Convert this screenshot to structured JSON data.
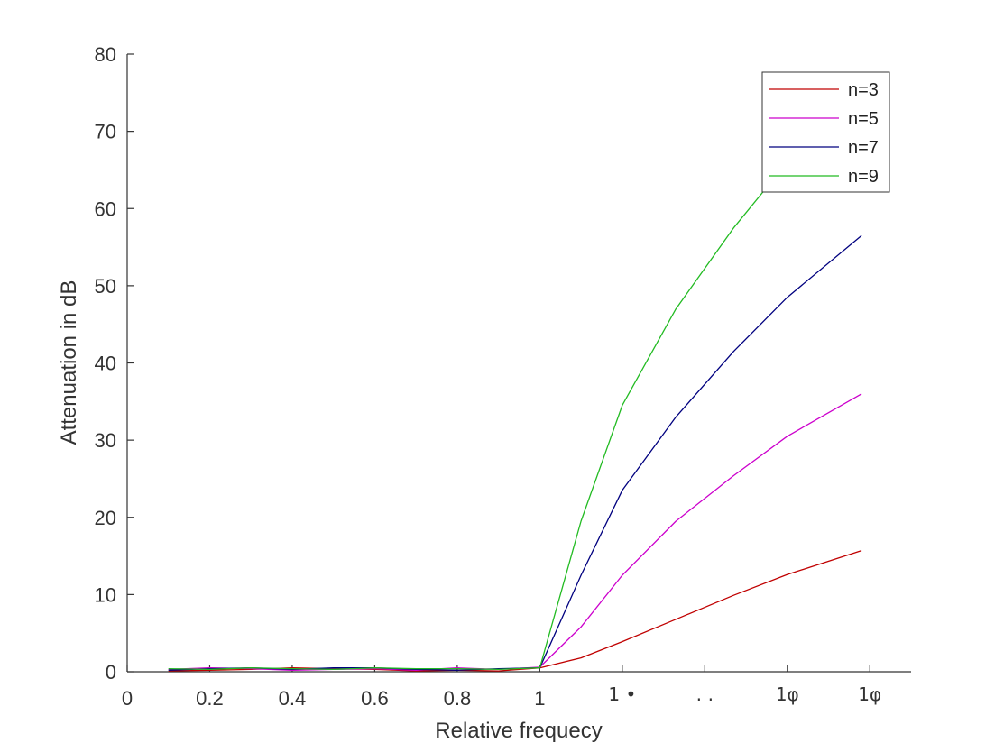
{
  "chart_data": {
    "type": "line",
    "title": "",
    "xlabel": "Relative frequecy",
    "ylabel": "Attenuation in dB",
    "xlim": [
      0,
      1.9
    ],
    "ylim": [
      0,
      80
    ],
    "x_ticks": [
      0,
      0.2,
      0.4,
      0.6,
      0.8,
      1,
      1.2,
      1.4,
      1.6,
      1.8
    ],
    "x_tick_labels": [
      "0",
      "0.2",
      "0.4",
      "0.6",
      "0.8",
      "1",
      "",
      "",
      "",
      ""
    ],
    "x_tick_garbled_labels": [
      "",
      "",
      "",
      "",
      "",
      "",
      "1 •",
      "․ ․",
      "1φ",
      "1φ"
    ],
    "y_ticks": [
      0,
      10,
      20,
      30,
      40,
      50,
      60,
      70,
      80
    ],
    "y_tick_labels": [
      "0",
      "10",
      "20",
      "30",
      "40",
      "50",
      "60",
      "70",
      "80"
    ],
    "grid": false,
    "legend_position": "top-right",
    "x": [
      0.1,
      0.2,
      0.3,
      0.4,
      0.5,
      0.6,
      0.7,
      0.8,
      0.9,
      1.0,
      1.1,
      1.2,
      1.33,
      1.47,
      1.6,
      1.78
    ],
    "series": [
      {
        "name": "n=3",
        "color": "#c00000",
        "values": [
          0.1,
          0.2,
          0.3,
          0.5,
          0.4,
          0.3,
          0.1,
          0.2,
          0.1,
          0.5,
          1.8,
          3.9,
          6.8,
          9.9,
          12.6,
          15.7
        ]
      },
      {
        "name": "n=5",
        "color": "#cc00cc",
        "values": [
          0.3,
          0.5,
          0.4,
          0.2,
          0.3,
          0.4,
          0.2,
          0.5,
          0.3,
          0.6,
          5.8,
          12.5,
          19.5,
          25.4,
          30.5,
          36.0
        ]
      },
      {
        "name": "n=7",
        "color": "#00007f",
        "values": [
          0.2,
          0.4,
          0.5,
          0.3,
          0.5,
          0.5,
          0.3,
          0.2,
          0.4,
          0.5,
          12.5,
          23.5,
          33.0,
          41.5,
          48.5,
          56.5
        ]
      },
      {
        "name": "n=9",
        "color": "#22bb22",
        "values": [
          0.4,
          0.3,
          0.5,
          0.4,
          0.3,
          0.5,
          0.4,
          0.4,
          0.3,
          0.5,
          19.5,
          34.5,
          47.0,
          57.5,
          66.0,
          77.0
        ]
      }
    ]
  }
}
